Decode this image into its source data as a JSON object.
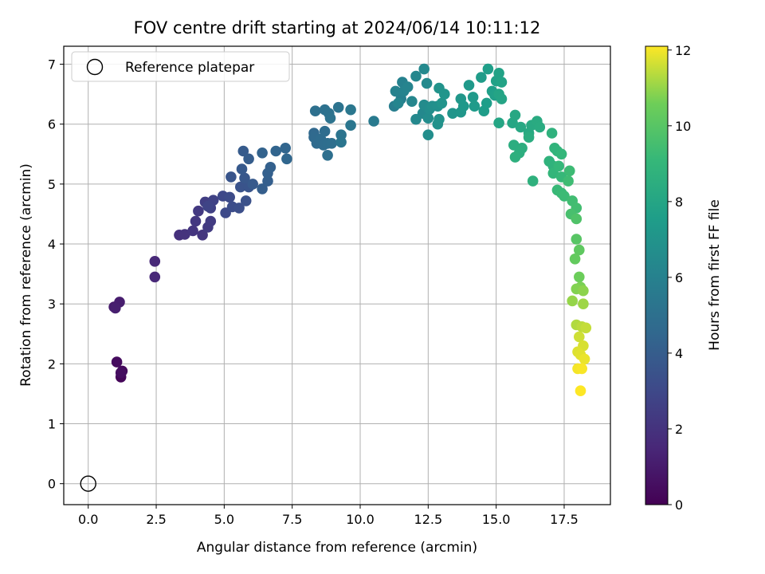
{
  "chart_data": {
    "type": "scatter",
    "title": "FOV centre drift starting at 2024/06/14 10:11:12",
    "xlabel": "Angular distance from reference (arcmin)",
    "ylabel": "Rotation from reference (arcmin)",
    "xlim": [
      -0.9,
      19.2
    ],
    "ylim": [
      -0.35,
      7.3
    ],
    "xticks": [
      "0.0",
      "2.5",
      "5.0",
      "7.5",
      "10.0",
      "12.5",
      "15.0",
      "17.5"
    ],
    "yticks": [
      "0",
      "1",
      "2",
      "3",
      "4",
      "5",
      "6",
      "7"
    ],
    "grid": true,
    "legend_position": "top-left",
    "colormap": "viridis",
    "colorbar": {
      "label": "Hours from first FF file",
      "range": [
        0,
        12.1
      ],
      "ticks": [
        "0",
        "2",
        "4",
        "6",
        "8",
        "10",
        "12"
      ]
    },
    "reference": {
      "name": "Reference platepar",
      "x": 0.0,
      "y": 0.0
    },
    "points": [
      [
        1.2,
        1.78,
        0.2
      ],
      [
        1.25,
        1.88,
        0.3
      ],
      [
        1.05,
        2.03,
        0.4
      ],
      [
        1.2,
        1.85,
        0.5
      ],
      [
        0.95,
        2.95,
        1.0
      ],
      [
        1.15,
        3.03,
        1.1
      ],
      [
        1.0,
        2.93,
        1.15
      ],
      [
        2.45,
        3.45,
        1.5
      ],
      [
        2.45,
        3.71,
        1.55
      ],
      [
        3.35,
        4.15,
        1.9
      ],
      [
        3.55,
        4.16,
        2.0
      ],
      [
        3.85,
        4.22,
        2.1
      ],
      [
        4.2,
        4.15,
        2.15
      ],
      [
        3.95,
        4.38,
        2.2
      ],
      [
        4.05,
        4.55,
        2.3
      ],
      [
        4.4,
        4.28,
        2.35
      ],
      [
        4.5,
        4.38,
        2.4
      ],
      [
        4.3,
        4.7,
        2.5
      ],
      [
        4.5,
        4.6,
        2.6
      ],
      [
        4.6,
        4.73,
        2.7
      ],
      [
        4.4,
        4.63,
        2.8
      ],
      [
        4.95,
        4.8,
        3.0
      ],
      [
        5.05,
        4.52,
        3.05
      ],
      [
        5.2,
        4.78,
        3.1
      ],
      [
        5.3,
        4.62,
        3.2
      ],
      [
        5.55,
        4.6,
        3.3
      ],
      [
        5.8,
        4.72,
        3.4
      ],
      [
        5.6,
        4.95,
        3.5
      ],
      [
        5.9,
        4.95,
        3.55
      ],
      [
        5.25,
        5.12,
        3.6
      ],
      [
        5.75,
        5.1,
        3.7
      ],
      [
        5.65,
        5.25,
        3.8
      ],
      [
        6.05,
        5.0,
        3.85
      ],
      [
        5.7,
        5.55,
        3.9
      ],
      [
        5.9,
        5.42,
        4.0
      ],
      [
        6.4,
        4.92,
        4.05
      ],
      [
        6.6,
        5.05,
        4.1
      ],
      [
        6.6,
        5.18,
        4.15
      ],
      [
        6.7,
        5.28,
        4.2
      ],
      [
        6.4,
        5.52,
        4.3
      ],
      [
        6.9,
        5.55,
        4.4
      ],
      [
        7.25,
        5.6,
        4.45
      ],
      [
        7.3,
        5.42,
        4.5
      ],
      [
        8.3,
        5.85,
        4.6
      ],
      [
        8.3,
        5.78,
        4.65
      ],
      [
        8.4,
        5.68,
        4.7
      ],
      [
        8.55,
        5.75,
        4.75
      ],
      [
        8.65,
        5.65,
        4.8
      ],
      [
        8.7,
        5.88,
        4.85
      ],
      [
        8.8,
        5.68,
        4.9
      ],
      [
        8.95,
        5.68,
        4.95
      ],
      [
        8.8,
        5.48,
        4.97
      ],
      [
        8.35,
        6.22,
        5.0
      ],
      [
        8.7,
        6.24,
        5.05
      ],
      [
        8.85,
        6.18,
        5.1
      ],
      [
        8.9,
        6.1,
        5.15
      ],
      [
        9.2,
        6.28,
        5.2
      ],
      [
        9.3,
        5.82,
        5.25
      ],
      [
        9.3,
        5.7,
        5.3
      ],
      [
        9.65,
        5.98,
        5.35
      ],
      [
        9.65,
        6.24,
        5.4
      ],
      [
        10.5,
        6.05,
        5.6
      ],
      [
        11.25,
        6.3,
        5.8
      ],
      [
        11.5,
        6.42,
        5.9
      ],
      [
        11.55,
        6.7,
        6.0
      ],
      [
        11.3,
        6.55,
        6.05
      ],
      [
        11.6,
        6.55,
        6.1
      ],
      [
        11.75,
        6.62,
        6.15
      ],
      [
        11.4,
        6.35,
        6.2
      ],
      [
        11.9,
        6.38,
        6.25
      ],
      [
        12.05,
        6.8,
        6.3
      ],
      [
        12.05,
        6.08,
        6.35
      ],
      [
        12.3,
        6.18,
        6.4
      ],
      [
        12.35,
        6.92,
        6.45
      ],
      [
        12.45,
        6.68,
        6.5
      ],
      [
        12.35,
        6.32,
        6.55
      ],
      [
        12.5,
        6.1,
        6.6
      ],
      [
        12.55,
        6.25,
        6.65
      ],
      [
        12.5,
        5.82,
        6.7
      ],
      [
        12.65,
        6.3,
        6.75
      ],
      [
        12.85,
        6.3,
        6.8
      ],
      [
        12.85,
        6.0,
        6.85
      ],
      [
        12.9,
        6.08,
        6.9
      ],
      [
        12.9,
        6.6,
        6.95
      ],
      [
        13.0,
        6.35,
        7.0
      ],
      [
        13.1,
        6.5,
        7.05
      ],
      [
        13.4,
        6.18,
        7.1
      ],
      [
        13.7,
        6.2,
        7.15
      ],
      [
        13.7,
        6.42,
        7.2
      ],
      [
        13.8,
        6.3,
        7.25
      ],
      [
        14.0,
        6.65,
        7.3
      ],
      [
        14.15,
        6.45,
        7.35
      ],
      [
        14.2,
        6.3,
        7.4
      ],
      [
        14.45,
        6.78,
        7.45
      ],
      [
        14.55,
        6.22,
        7.5
      ],
      [
        14.65,
        6.35,
        7.55
      ],
      [
        14.7,
        6.92,
        7.6
      ],
      [
        14.85,
        6.55,
        7.65
      ],
      [
        14.95,
        6.48,
        7.7
      ],
      [
        15.0,
        6.72,
        7.75
      ],
      [
        15.1,
        6.85,
        7.8
      ],
      [
        15.2,
        6.7,
        7.85
      ],
      [
        15.1,
        6.5,
        7.9
      ],
      [
        15.2,
        6.42,
        7.95
      ],
      [
        15.1,
        6.02,
        8.0
      ],
      [
        15.6,
        6.02,
        8.05
      ],
      [
        15.7,
        6.15,
        8.1
      ],
      [
        15.9,
        5.95,
        8.15
      ],
      [
        16.2,
        5.85,
        8.2
      ],
      [
        16.3,
        5.98,
        8.25
      ],
      [
        16.5,
        6.05,
        8.3
      ],
      [
        16.6,
        5.95,
        8.35
      ],
      [
        16.2,
        5.78,
        8.4
      ],
      [
        15.65,
        5.65,
        8.45
      ],
      [
        15.95,
        5.6,
        8.5
      ],
      [
        15.85,
        5.52,
        8.55
      ],
      [
        15.7,
        5.45,
        8.6
      ],
      [
        16.35,
        5.05,
        8.65
      ],
      [
        17.05,
        5.85,
        8.7
      ],
      [
        16.95,
        5.38,
        8.75
      ],
      [
        17.1,
        5.3,
        8.8
      ],
      [
        17.15,
        5.6,
        8.85
      ],
      [
        17.25,
        5.55,
        8.9
      ],
      [
        17.1,
        5.18,
        8.95
      ],
      [
        17.4,
        5.5,
        9.0
      ],
      [
        17.3,
        5.3,
        9.05
      ],
      [
        17.4,
        5.12,
        9.1
      ],
      [
        17.25,
        4.9,
        9.15
      ],
      [
        17.4,
        4.85,
        9.2
      ],
      [
        17.5,
        4.8,
        9.25
      ],
      [
        17.7,
        5.22,
        9.3
      ],
      [
        17.65,
        5.05,
        9.35
      ],
      [
        17.8,
        4.72,
        9.4
      ],
      [
        17.95,
        4.6,
        9.45
      ],
      [
        17.75,
        4.5,
        9.6
      ],
      [
        17.95,
        4.42,
        9.8
      ],
      [
        17.95,
        4.08,
        10.0
      ],
      [
        18.05,
        3.9,
        10.2
      ],
      [
        17.9,
        3.75,
        10.3
      ],
      [
        18.05,
        3.45,
        10.5
      ],
      [
        18.1,
        3.28,
        10.7
      ],
      [
        17.95,
        3.25,
        10.8
      ],
      [
        18.2,
        3.22,
        10.9
      ],
      [
        17.8,
        3.05,
        11.0
      ],
      [
        18.2,
        3.0,
        11.1
      ],
      [
        17.95,
        2.65,
        11.3
      ],
      [
        18.15,
        2.62,
        11.4
      ],
      [
        18.3,
        2.6,
        11.5
      ],
      [
        18.05,
        2.45,
        11.6
      ],
      [
        18.2,
        2.3,
        11.7
      ],
      [
        18.0,
        2.2,
        11.75
      ],
      [
        18.1,
        2.15,
        11.8
      ],
      [
        18.25,
        2.08,
        11.9
      ],
      [
        18.0,
        1.92,
        12.0
      ],
      [
        18.15,
        1.92,
        12.05
      ],
      [
        18.1,
        1.55,
        12.1
      ]
    ]
  }
}
